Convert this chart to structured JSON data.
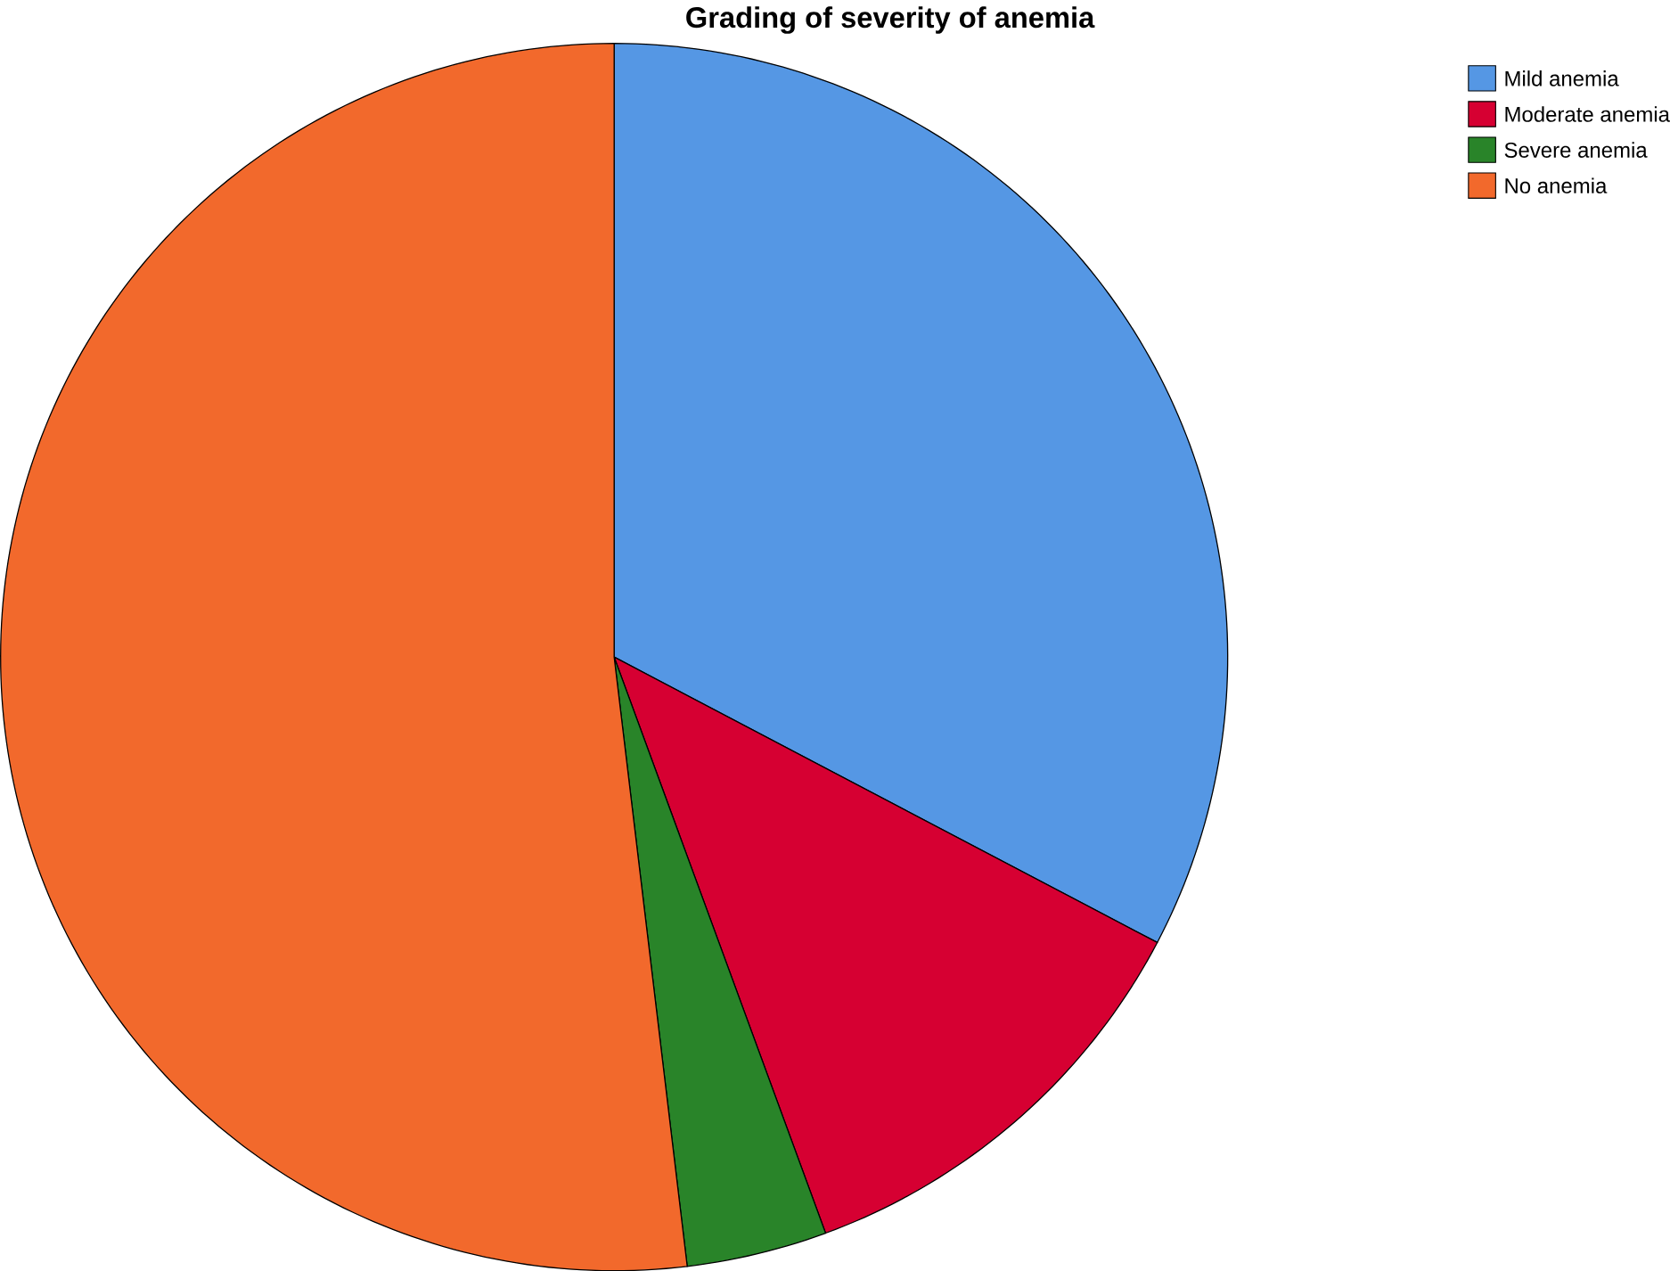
{
  "chart_data": {
    "type": "pie",
    "title": "Grading of severity of anemia",
    "categories": [
      "Mild anemia",
      "Moderate anemia",
      "Severe anemia",
      "No anemia"
    ],
    "values": [
      32.7,
      11.7,
      3.7,
      51.9
    ],
    "colors": [
      "#5597e4",
      "#d60032",
      "#298429",
      "#f2692c"
    ],
    "legend": "top right"
  }
}
